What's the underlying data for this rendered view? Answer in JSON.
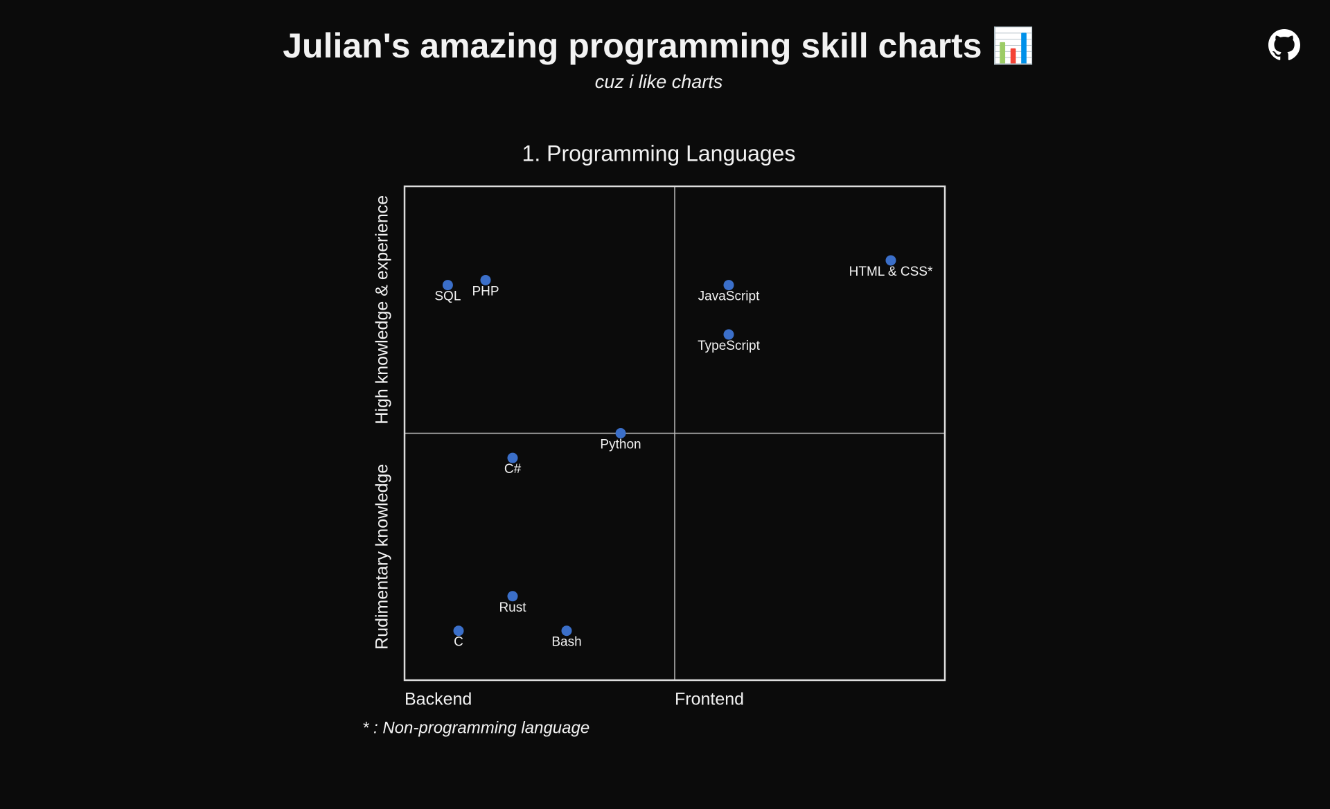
{
  "header": {
    "title": "Julian's amazing programming skill charts 📊",
    "subtitle": "cuz i like charts"
  },
  "chart_data": {
    "type": "scatter",
    "title": "1. Programming Languages",
    "x_labels": [
      "Backend",
      "Frontend"
    ],
    "y_labels": [
      "Rudimentary knowledge",
      "High knowledge & experience"
    ],
    "xlim": [
      0,
      10
    ],
    "ylim": [
      0,
      10
    ],
    "color": "#3b6fc9",
    "series": [
      {
        "names": [
          "SQL",
          "PHP",
          "JavaScript",
          "HTML & CSS*",
          "TypeScript",
          "Python",
          "C#",
          "Rust",
          "C",
          "Bash"
        ],
        "x": [
          0.8,
          1.5,
          6.0,
          9.0,
          6.0,
          4.0,
          2.0,
          2.0,
          1.0,
          3.0
        ],
        "values": [
          8.0,
          8.1,
          8.0,
          8.5,
          7.0,
          5.0,
          4.5,
          1.7,
          1.0,
          1.0
        ]
      }
    ],
    "footnote": "* : Non-programming language"
  }
}
